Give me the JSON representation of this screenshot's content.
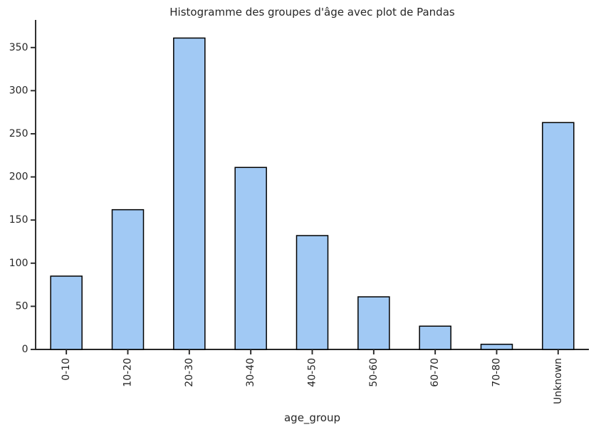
{
  "chart_data": {
    "type": "bar",
    "title": "Histogramme des groupes d'âge avec plot de Pandas",
    "xlabel": "age_group",
    "ylabel": "",
    "categories": [
      "0-10",
      "10-20",
      "20-30",
      "30-40",
      "40-50",
      "50-60",
      "60-70",
      "70-80",
      "Unknown"
    ],
    "values": [
      85,
      162,
      361,
      211,
      132,
      61,
      27,
      6,
      263
    ],
    "yticks": [
      0,
      50,
      100,
      150,
      200,
      250,
      300,
      350
    ],
    "ylim": [
      0,
      382
    ],
    "x_tick_rotation": 90,
    "grid": false,
    "legend": "none",
    "colors": {
      "bar_fill": "#a1c9f4",
      "bar_edge": "#000000",
      "axis": "#262626",
      "text": "#262626",
      "background": "#ffffff"
    }
  }
}
